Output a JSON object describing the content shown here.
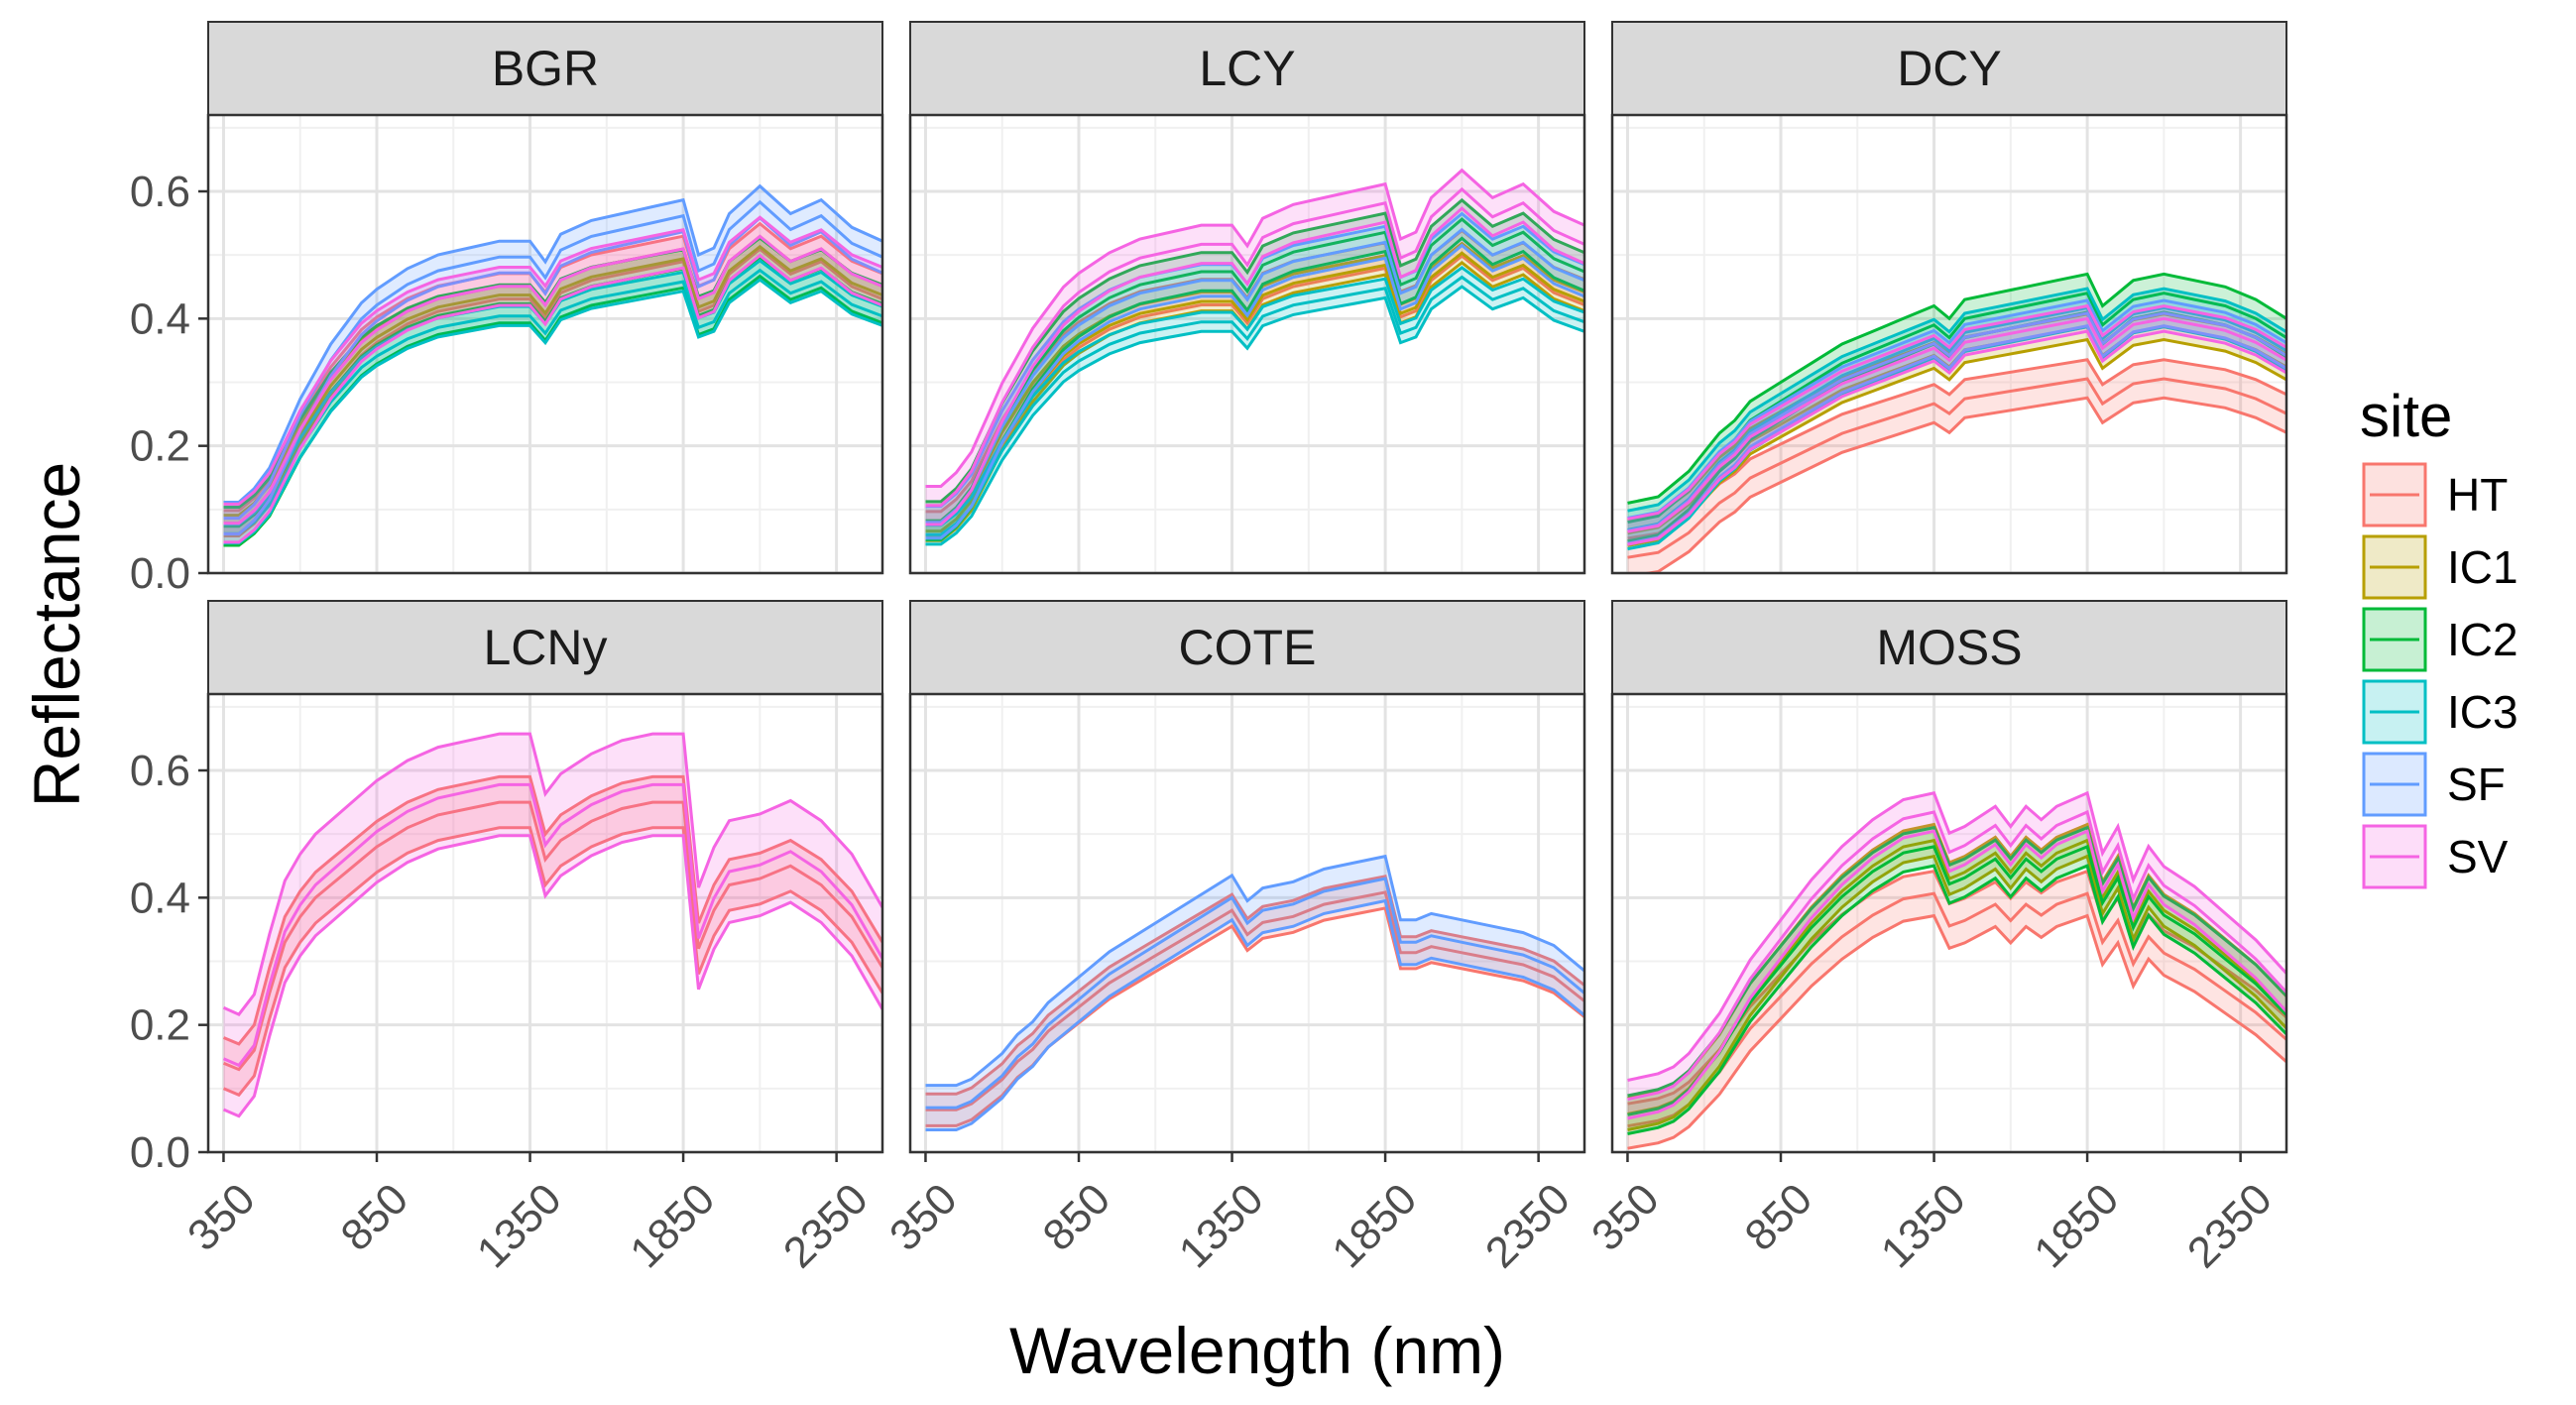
{
  "chart_data": {
    "type": "area",
    "xlabel": "Wavelength (nm)",
    "ylabel": "Reflectance",
    "x_ticks": [
      350,
      850,
      1350,
      1850,
      2350
    ],
    "y_ticks": [
      "0.0",
      "0.2",
      "0.4",
      "0.6"
    ],
    "xlim": [
      300,
      2500
    ],
    "ylim": [
      0,
      0.72
    ],
    "grid": true,
    "legend": {
      "title": "site",
      "placement": "right",
      "entries": [
        {
          "name": "HT",
          "color": "#F8766D"
        },
        {
          "name": "IC1",
          "color": "#B79F00"
        },
        {
          "name": "IC2",
          "color": "#00BA38"
        },
        {
          "name": "IC3",
          "color": "#00BFC4"
        },
        {
          "name": "SF",
          "color": "#619CFF"
        },
        {
          "name": "SV",
          "color": "#F564E3"
        }
      ]
    },
    "panels": [
      {
        "title": "BGR",
        "series": [
          {
            "name": "HT",
            "scale": 0.98,
            "offset": 0.0,
            "band": 0.04,
            "mode": 0
          },
          {
            "name": "IC1",
            "scale": 0.95,
            "offset": 0.0,
            "band": 0.03,
            "mode": 0
          },
          {
            "name": "IC2",
            "scale": 0.92,
            "offset": 0.0,
            "band": 0.06,
            "mode": 0
          },
          {
            "name": "IC3",
            "scale": 0.9,
            "offset": -0.01,
            "band": 0.03,
            "mode": 0
          },
          {
            "name": "SF",
            "scale": 1.08,
            "offset": 0.0,
            "band": 0.05,
            "mode": 0
          },
          {
            "name": "SV",
            "scale": 0.98,
            "offset": 0.0,
            "band": 0.06,
            "mode": 0
          }
        ]
      },
      {
        "title": "LCY",
        "series": [
          {
            "name": "HT",
            "scale": 0.96,
            "offset": 0.0,
            "band": 0.04,
            "mode": 0
          },
          {
            "name": "IC1",
            "scale": 0.95,
            "offset": -0.01,
            "band": 0.03,
            "mode": 0
          },
          {
            "name": "IC2",
            "scale": 1.03,
            "offset": 0.0,
            "band": 0.06,
            "mode": 0
          },
          {
            "name": "IC3",
            "scale": 0.88,
            "offset": -0.01,
            "band": 0.03,
            "mode": 0
          },
          {
            "name": "SF",
            "scale": 1.0,
            "offset": 0.0,
            "band": 0.05,
            "mode": 0
          },
          {
            "name": "SV",
            "scale": 1.08,
            "offset": 0.02,
            "band": 0.06,
            "mode": 0
          }
        ]
      },
      {
        "title": "DCY",
        "series": [
          {
            "name": "HT",
            "scale": 0.78,
            "offset": -0.03,
            "band": 0.06,
            "mode": 1
          },
          {
            "name": "IC1",
            "scale": 0.9,
            "offset": 0.0,
            "band": 0.04,
            "mode": 1
          },
          {
            "name": "IC2",
            "scale": 1.0,
            "offset": 0.01,
            "band": 0.06,
            "mode": 1
          },
          {
            "name": "IC3",
            "scale": 0.97,
            "offset": 0.0,
            "band": 0.06,
            "mode": 1
          },
          {
            "name": "SF",
            "scale": 0.95,
            "offset": 0.0,
            "band": 0.04,
            "mode": 1
          },
          {
            "name": "SV",
            "scale": 0.93,
            "offset": 0.0,
            "band": 0.04,
            "mode": 1
          }
        ]
      },
      {
        "title": "LCNy",
        "series": [
          {
            "name": "HT",
            "scale": 1.0,
            "offset": 0.0,
            "band": 0.08,
            "mode": 2
          },
          {
            "name": "SV",
            "scale": 1.05,
            "offset": 0.0,
            "band": 0.16,
            "mode": 2
          }
        ]
      },
      {
        "title": "COTE",
        "series": [
          {
            "name": "HT",
            "scale": 0.95,
            "offset": 0.0,
            "band": 0.05,
            "mode": 3
          },
          {
            "name": "SF",
            "scale": 1.0,
            "offset": 0.0,
            "band": 0.07,
            "mode": 3
          }
        ]
      },
      {
        "title": "MOSS",
        "series": [
          {
            "name": "HT",
            "scale": 0.85,
            "offset": -0.01,
            "band": 0.07,
            "mode": 4
          },
          {
            "name": "IC1",
            "scale": 1.0,
            "offset": 0.0,
            "band": 0.05,
            "mode": 4
          },
          {
            "name": "IC2",
            "scale": 0.98,
            "offset": 0.0,
            "band": 0.06,
            "mode": 4
          },
          {
            "name": "SV",
            "scale": 1.05,
            "offset": 0.02,
            "band": 0.06,
            "mode": 4
          }
        ]
      }
    ]
  }
}
